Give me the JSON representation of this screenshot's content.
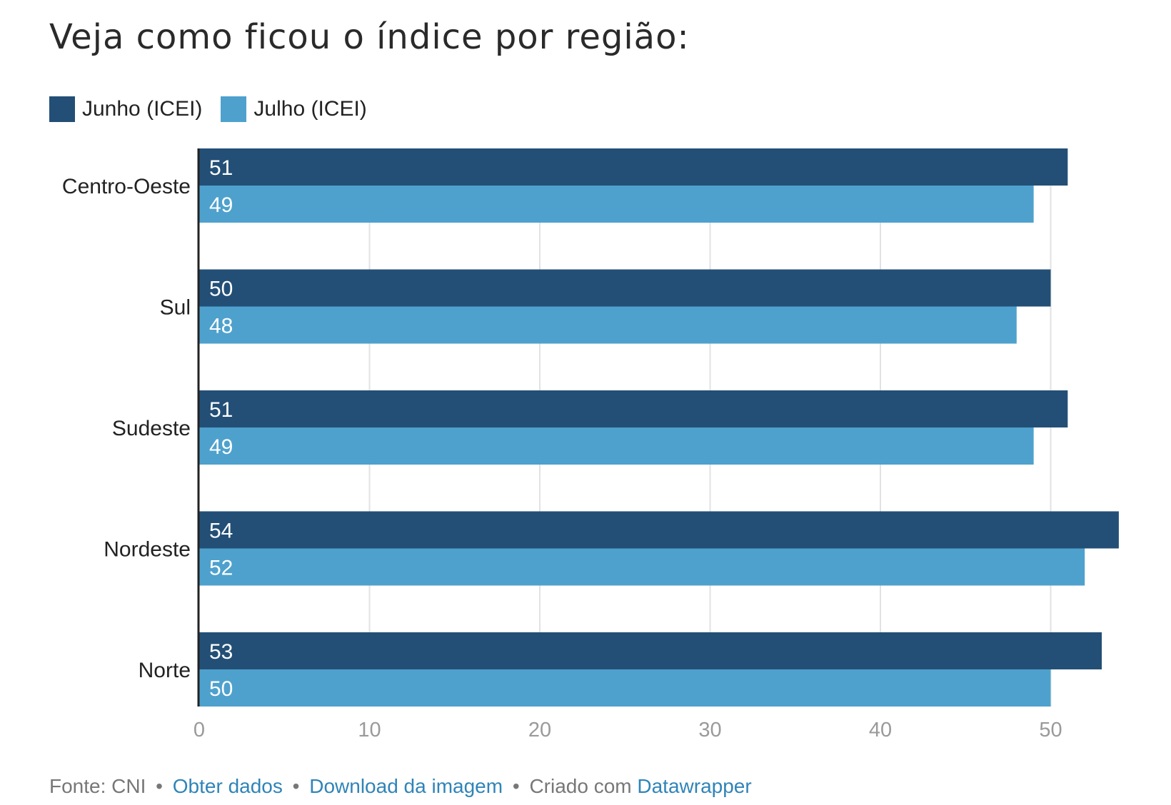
{
  "title": "Veja como ficou o índice por região:",
  "colors": {
    "junho": "#234f76",
    "julho": "#4ea1cd",
    "grid": "#e2e2e2",
    "axis": "#222222",
    "tick": "#9a9a9a",
    "link": "#2f84b8"
  },
  "legend": [
    {
      "label": "Junho (ICEI)",
      "color": "#234f76"
    },
    {
      "label": "Julho (ICEI)",
      "color": "#4ea1cd"
    }
  ],
  "chart_data": {
    "type": "bar",
    "orientation": "horizontal",
    "categories": [
      "Centro-Oeste",
      "Sul",
      "Sudeste",
      "Nordeste",
      "Norte"
    ],
    "series": [
      {
        "name": "Junho (ICEI)",
        "values": [
          51,
          50,
          51,
          54,
          53
        ]
      },
      {
        "name": "Julho (ICEI)",
        "values": [
          49,
          48,
          49,
          52,
          50
        ]
      }
    ],
    "xlim": [
      0,
      54
    ],
    "xticks": [
      0,
      10,
      20,
      30,
      40,
      50
    ],
    "grid": true,
    "legend_position": "top-left"
  },
  "footer": {
    "source": "Fonte: CNI",
    "separator": "•",
    "link1": "Obter dados",
    "link2": "Download da imagem",
    "created": "Criado com",
    "link3": "Datawrapper"
  }
}
